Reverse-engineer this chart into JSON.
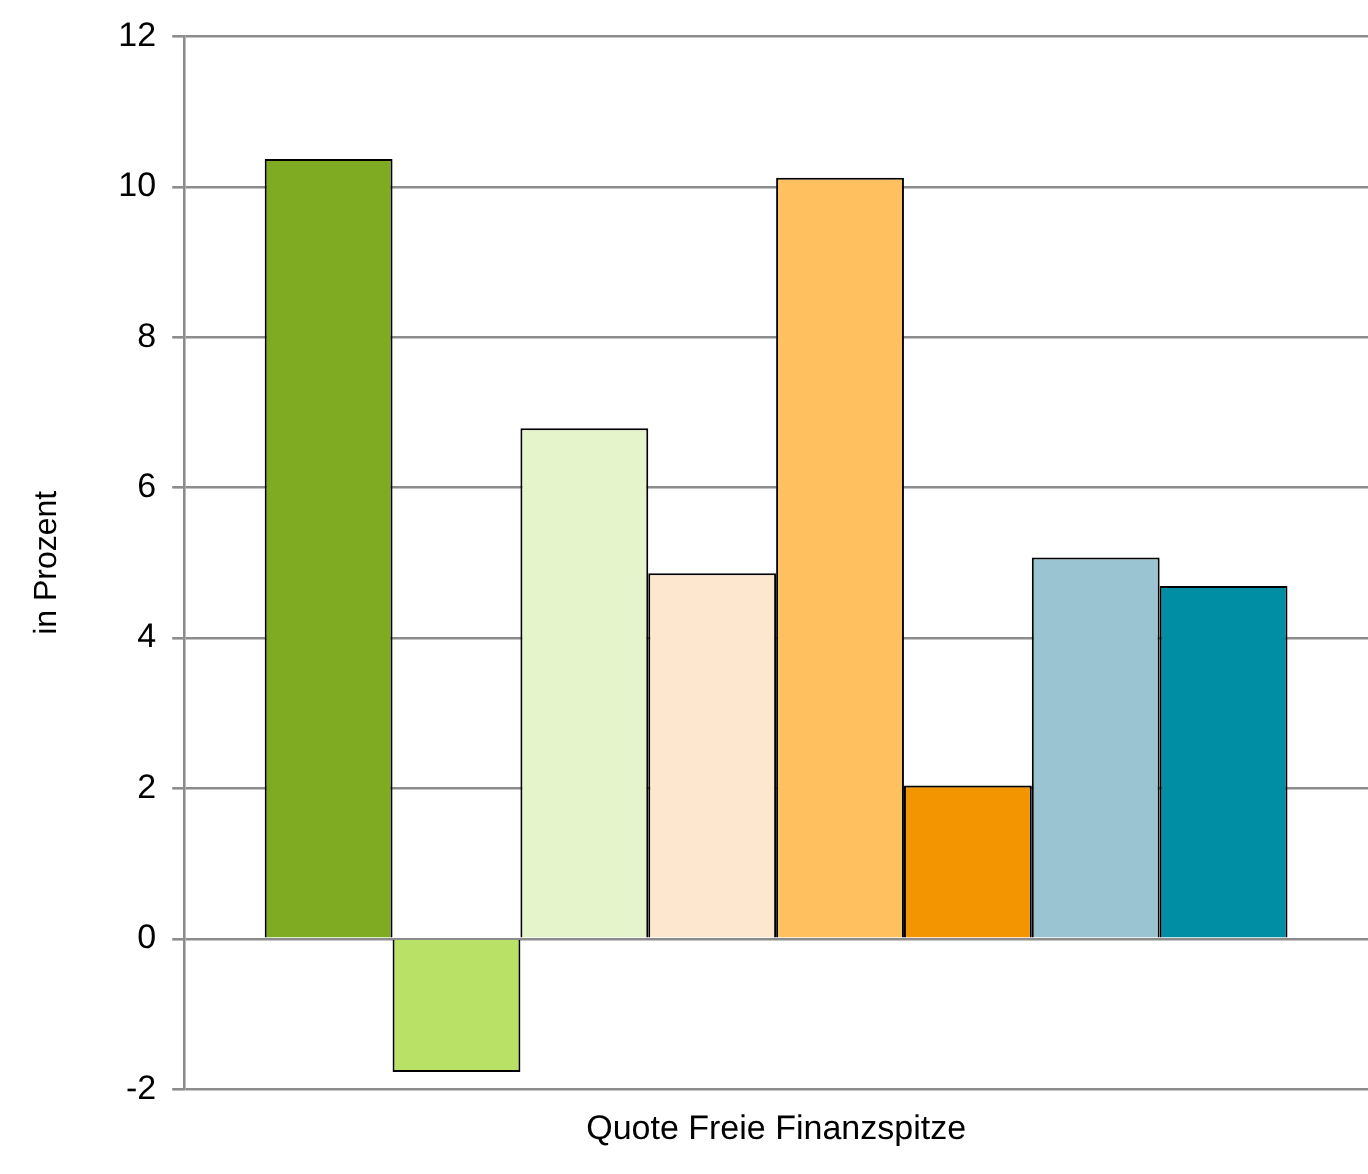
{
  "chart_data": {
    "type": "bar",
    "ylabel": "in Prozent",
    "categories": [
      "Quote Freie Finanzspitze"
    ],
    "series": [
      {
        "color": "#7eab22",
        "values": [
          10.37
        ]
      },
      {
        "color": "#b8e166",
        "values": [
          -1.77
        ]
      },
      {
        "color": "#e5f4cb",
        "values": [
          6.79
        ]
      },
      {
        "color": "#fde8cf",
        "values": [
          4.86
        ]
      },
      {
        "color": "#ffc060",
        "values": [
          10.12
        ]
      },
      {
        "color": "#f29500",
        "values": [
          2.04
        ]
      },
      {
        "color": "#9bc4d2",
        "values": [
          5.07
        ]
      },
      {
        "color": "#008ea5",
        "values": [
          4.69
        ]
      }
    ],
    "ylim": [
      -2,
      12
    ],
    "yticks": [
      -2,
      0,
      2,
      4,
      6,
      8,
      10,
      12
    ],
    "grid": "y",
    "legend": false
  }
}
